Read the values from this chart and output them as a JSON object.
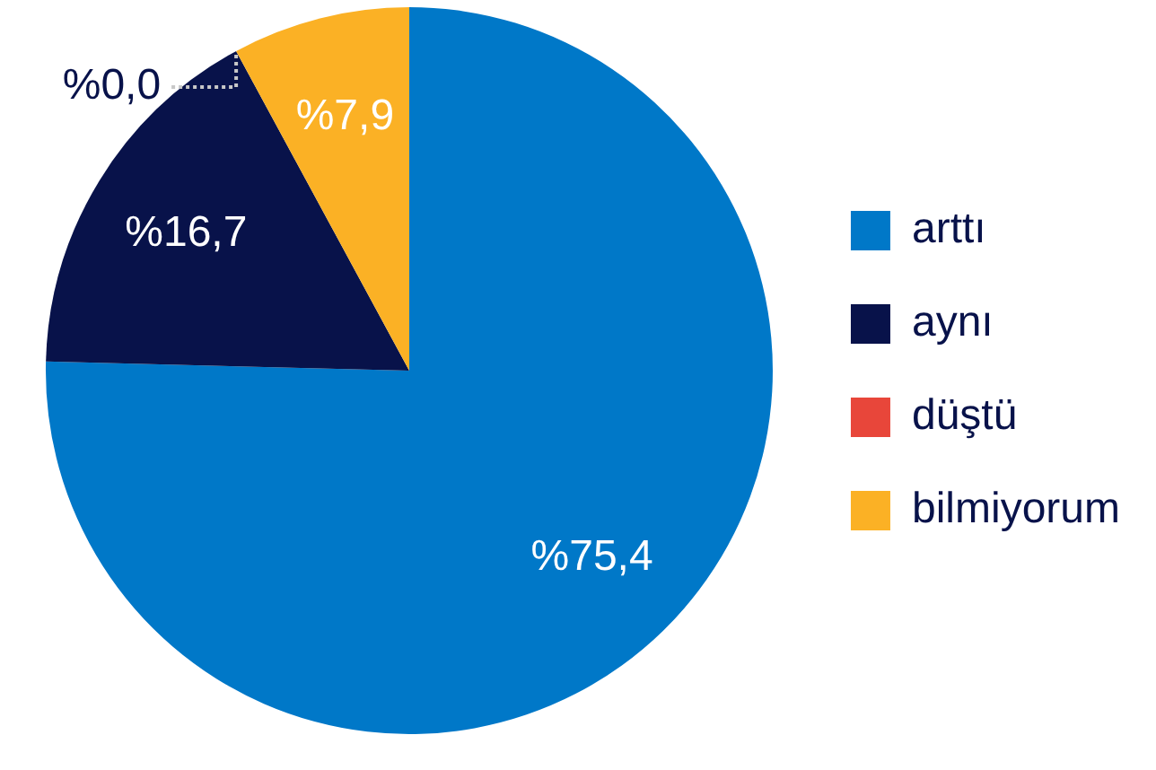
{
  "chart_data": {
    "type": "pie",
    "categories": [
      "arttı",
      "aynı",
      "düştü",
      "bilmiyorum"
    ],
    "values": [
      75.4,
      16.7,
      0.0,
      7.9
    ],
    "value_labels": [
      "%75,4",
      "%16,7",
      "%0,0",
      "%7,9"
    ],
    "colors": [
      "#0078c8",
      "#08124a",
      "#e8463a",
      "#fbb125"
    ],
    "legend": "right"
  }
}
